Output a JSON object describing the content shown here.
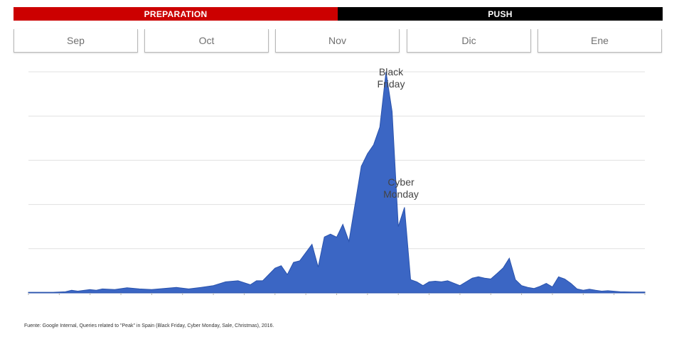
{
  "phases": [
    {
      "label": "PREPARATION",
      "color": "#cc0000"
    },
    {
      "label": "PUSH",
      "color": "#000000"
    }
  ],
  "months": [
    "Sep",
    "Oct",
    "Nov",
    "Dic",
    "Ene"
  ],
  "footer": "Fuente: Google Internal, Queries related to \"Peak\" in Spain (Black Friday, Cyber Monday, Sale, Christmas), 2016.",
  "chart_data": {
    "type": "area",
    "title": "",
    "xlabel": "",
    "ylabel": "",
    "grid": true,
    "ylim": [
      0,
      100
    ],
    "x_range": [
      0,
      5
    ],
    "fill_color": "#3b66c4",
    "stroke_color": "#2a53ad",
    "series": [
      {
        "x": [
          0,
          0.1,
          0.2,
          0.3,
          0.35,
          0.4,
          0.5,
          0.55,
          0.6,
          0.7,
          0.8,
          0.9,
          1.0,
          1.1,
          1.2,
          1.3,
          1.4,
          1.5,
          1.6,
          1.7,
          1.8,
          1.85,
          1.9,
          2.0,
          2.05,
          2.1,
          2.15,
          2.2,
          2.3,
          2.35,
          2.4,
          2.45,
          2.5,
          2.55,
          2.6,
          2.7,
          2.75,
          2.8,
          2.85,
          2.9,
          2.95,
          3.0,
          3.05,
          3.1,
          3.15,
          3.2,
          3.25,
          3.3,
          3.35,
          3.4,
          3.5,
          3.6,
          3.65,
          3.7,
          3.75,
          3.8,
          3.85,
          3.9,
          3.95,
          4.0,
          4.05,
          4.1,
          4.15,
          4.2,
          4.25,
          4.3,
          4.35,
          4.4,
          4.45,
          4.5,
          4.55,
          4.6,
          4.65,
          4.7,
          4.8,
          4.9,
          5.0
        ],
        "y": [
          0.3,
          0.3,
          0.3,
          0.5,
          1.2,
          0.8,
          1.5,
          1.2,
          1.8,
          1.5,
          2.3,
          1.8,
          1.5,
          2.0,
          2.5,
          1.8,
          2.5,
          3.3,
          5.0,
          5.5,
          3.7,
          5.5,
          5.5,
          11.2,
          12.3,
          8.3,
          13.8,
          14.5,
          22.0,
          11.7,
          25.3,
          26.6,
          25.2,
          31.0,
          23.3,
          57.3,
          63.0,
          67.0,
          75.0,
          100.0,
          82.0,
          30.0,
          38.7,
          6.0,
          5.0,
          3.3,
          5.0,
          5.3,
          5.0,
          5.5,
          3.3,
          6.7,
          7.3,
          6.7,
          6.3,
          8.7,
          11.3,
          15.7,
          6.0,
          3.3,
          2.5,
          2.0,
          3.0,
          4.3,
          2.7,
          7.3,
          6.3,
          4.3,
          1.8,
          1.2,
          1.7,
          1.2,
          0.8,
          1.0,
          0.5,
          0.4,
          0.4
        ]
      }
    ],
    "annotations": [
      {
        "lines": [
          "Black",
          "Friday"
        ],
        "x": 2.85,
        "y": 100
      },
      {
        "lines": [
          "Cyber",
          "Monday"
        ],
        "x": 2.95,
        "y": 50
      }
    ]
  }
}
